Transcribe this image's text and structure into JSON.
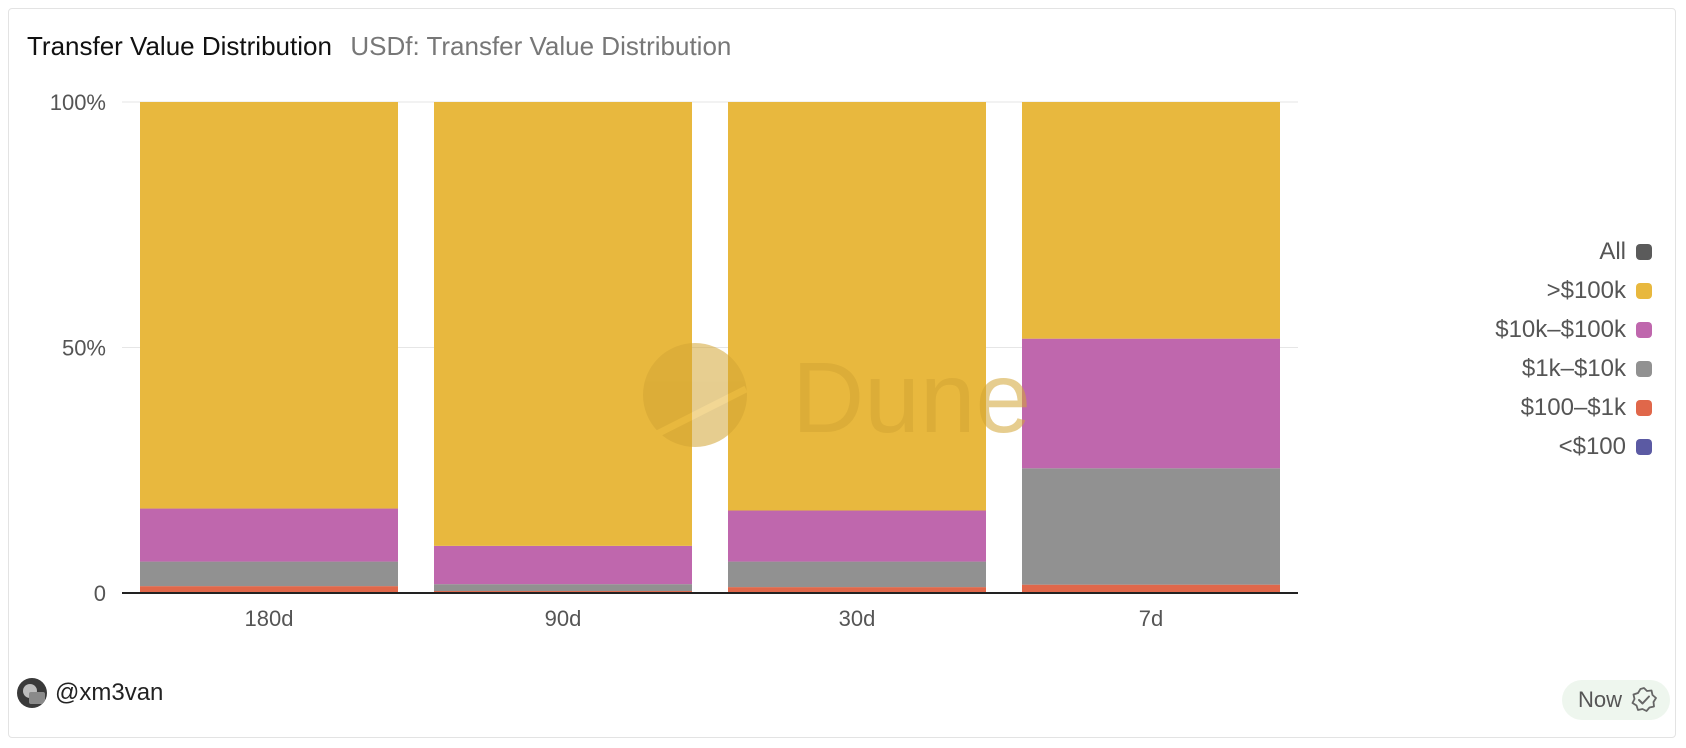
{
  "header": {
    "title": "Transfer Value Distribution",
    "subtitle": "USDf: Transfer Value Distribution"
  },
  "watermark": "Dune",
  "footer": {
    "username": "@xm3van",
    "badge_label": "Now"
  },
  "chart_data": {
    "type": "bar",
    "stacked": true,
    "normalized": true,
    "categories": [
      "180d",
      "90d",
      "30d",
      "7d"
    ],
    "y_ticks": [
      "0",
      "50%",
      "100%"
    ],
    "ylim": [
      0,
      100
    ],
    "grid": true,
    "legend_position": "right",
    "series": [
      {
        "name": "<$100",
        "color": "#5b5aa3",
        "values": [
          0.2,
          0.1,
          0.2,
          0.2
        ]
      },
      {
        "name": "$100–$1k",
        "color": "#e0674a",
        "values": [
          1.2,
          0.3,
          1.0,
          1.5
        ]
      },
      {
        "name": "$1k–$10k",
        "color": "#919191",
        "values": [
          5.0,
          1.4,
          5.2,
          23.7
        ]
      },
      {
        "name": "$10k–$100k",
        "color": "#bf67ad",
        "values": [
          10.8,
          7.8,
          10.4,
          26.4
        ]
      },
      {
        "name": ">$100k",
        "color": "#e8b83e",
        "values": [
          82.8,
          90.4,
          83.2,
          48.2
        ]
      }
    ],
    "legend": [
      {
        "label": "All",
        "color": "#5b5b5b"
      },
      {
        "label": ">$100k",
        "color": "#e8b83e"
      },
      {
        "label": "$10k–$100k",
        "color": "#bf67ad"
      },
      {
        "label": "$1k–$10k",
        "color": "#919191"
      },
      {
        "label": "$100–$1k",
        "color": "#e0674a"
      },
      {
        "label": "<$100",
        "color": "#5b5aa3"
      }
    ]
  }
}
